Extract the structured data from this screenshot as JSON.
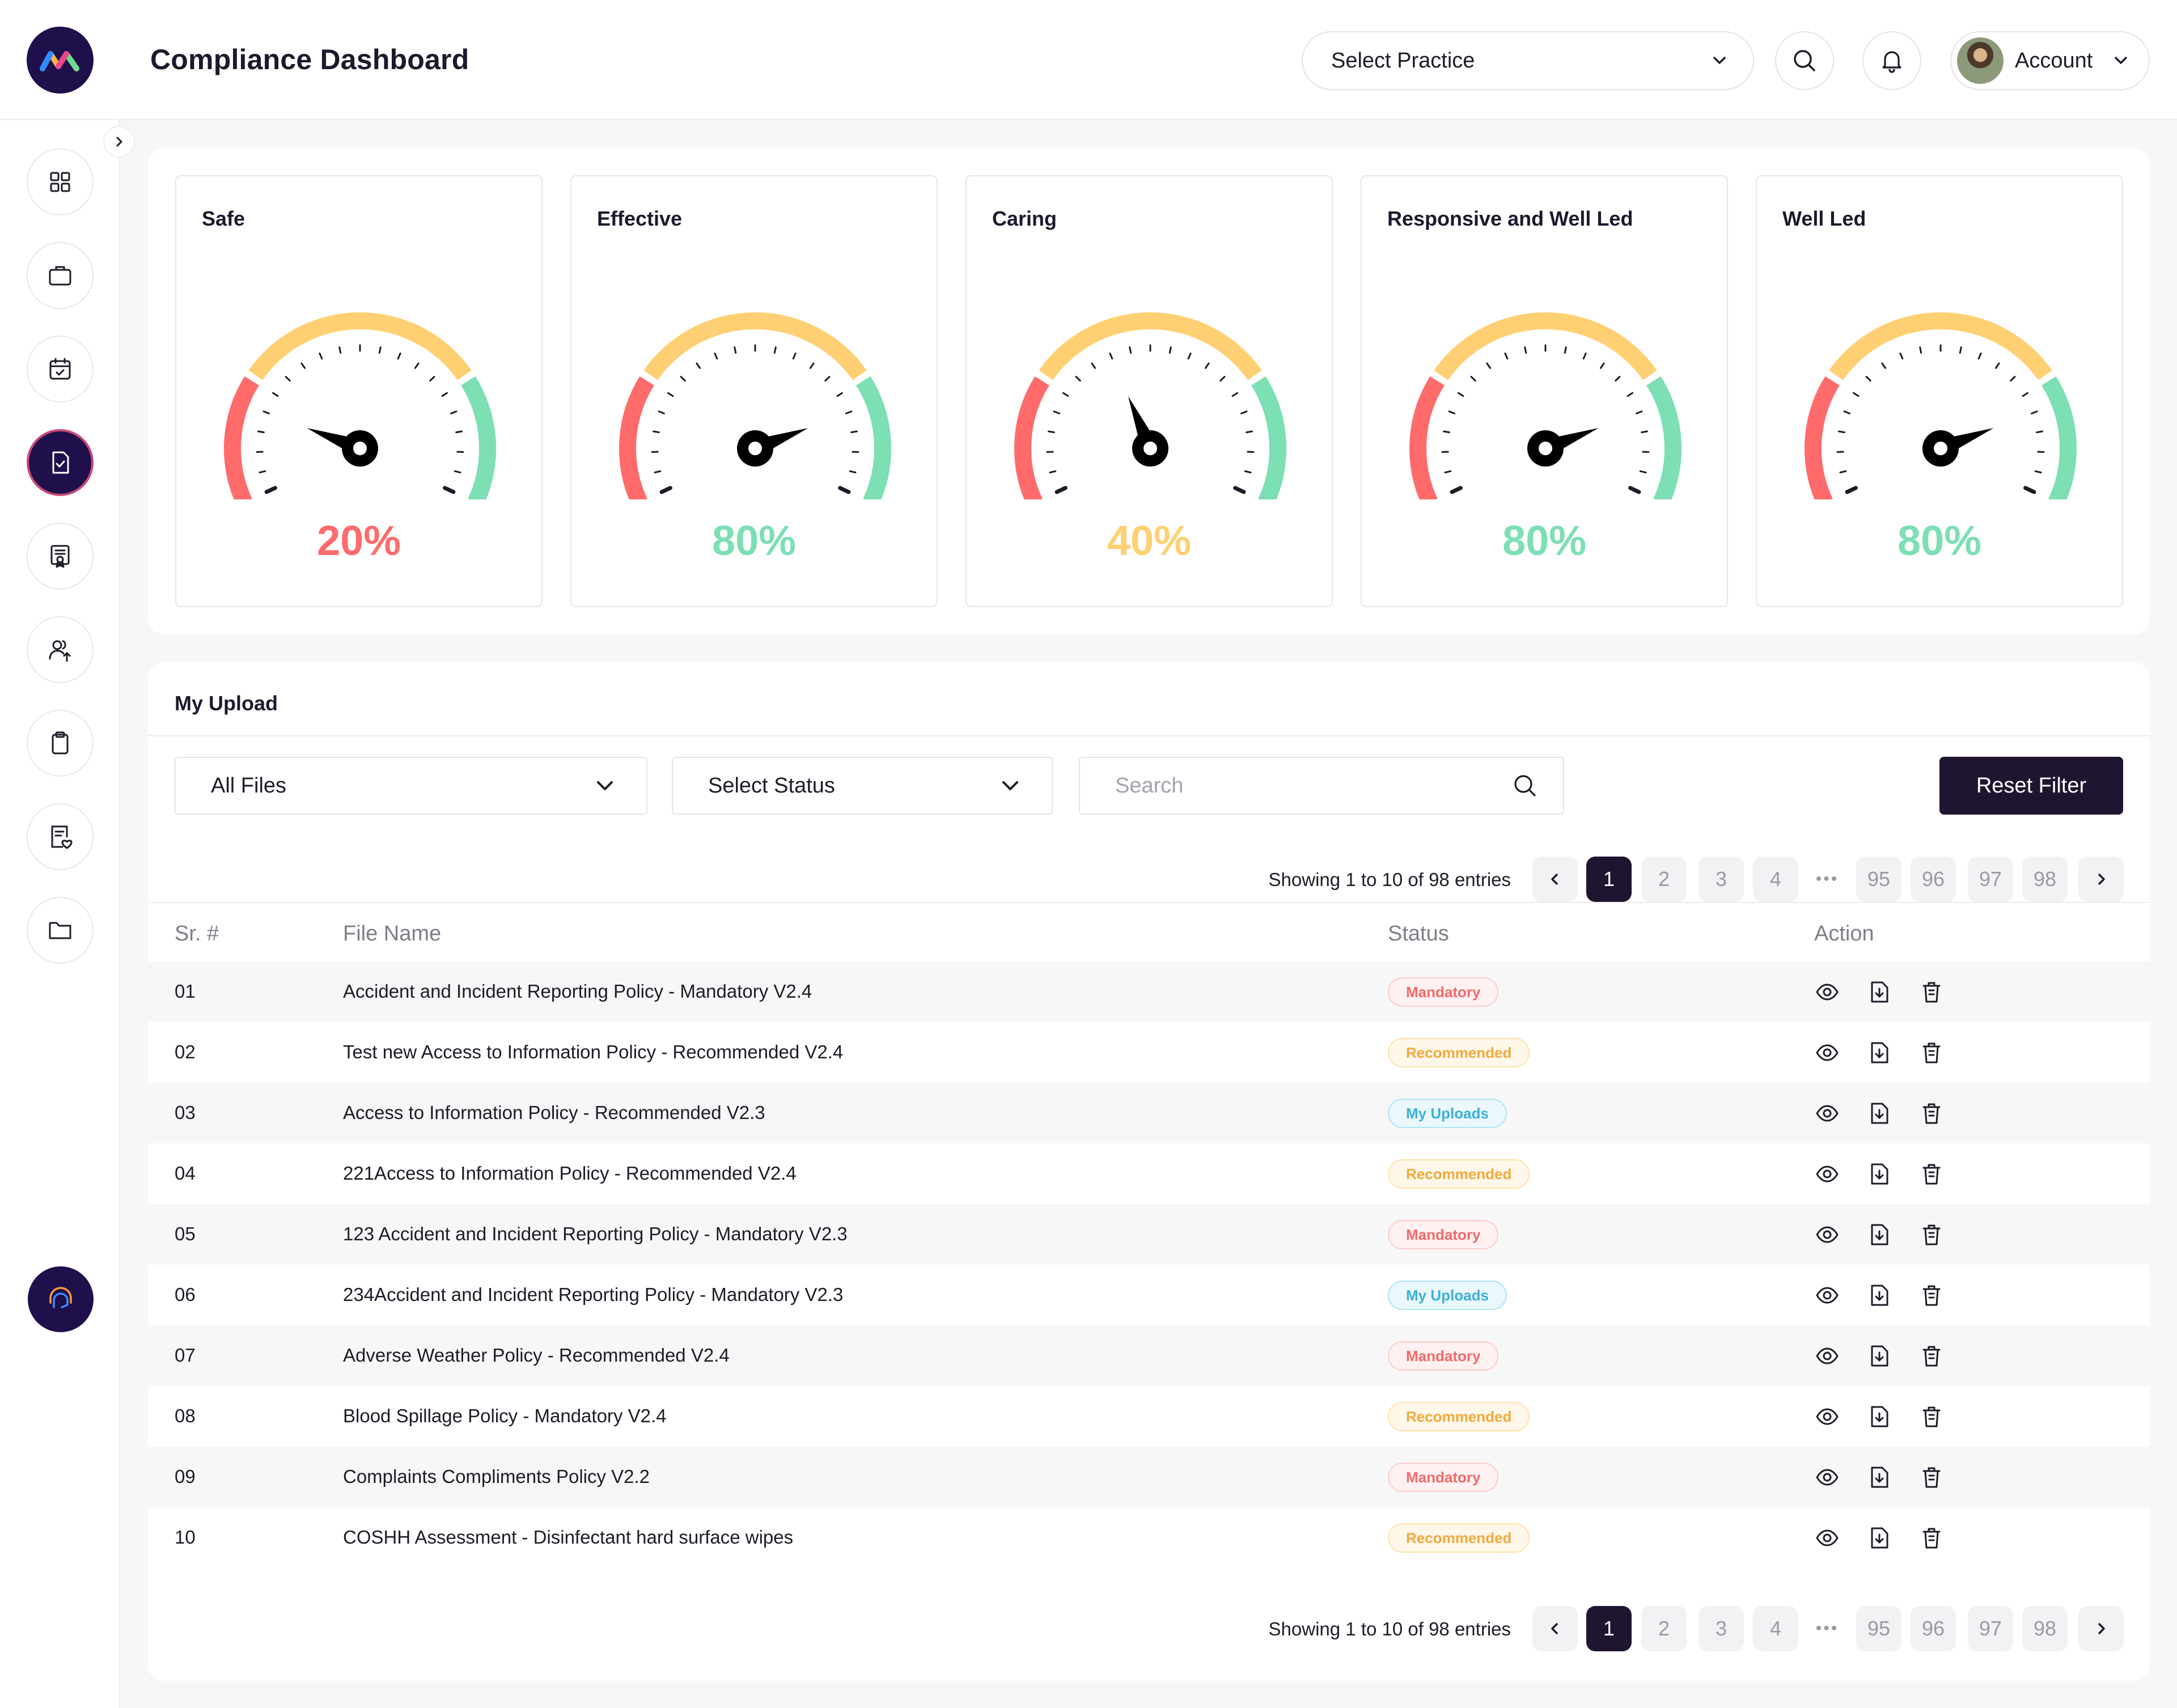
{
  "header": {
    "title": "Compliance Dashboard",
    "practice_select": "Select Practice",
    "account_label": "Account"
  },
  "icons": {
    "logo": "brand-m-logo",
    "search": "search-icon",
    "bell": "bell-icon",
    "chevron": "chevron-down-icon"
  },
  "sidebar": {
    "items": [
      {
        "name": "dashboard",
        "icon": "grid-icon"
      },
      {
        "name": "practice",
        "icon": "briefcase-icon"
      },
      {
        "name": "calendar",
        "icon": "calendar-check-icon"
      },
      {
        "name": "compliance",
        "icon": "document-check-icon",
        "active": true
      },
      {
        "name": "certificate",
        "icon": "certificate-icon"
      },
      {
        "name": "users",
        "icon": "users-icon"
      },
      {
        "name": "clipboard",
        "icon": "clipboard-icon"
      },
      {
        "name": "policies",
        "icon": "document-heart-icon"
      },
      {
        "name": "folders",
        "icon": "folder-icon"
      }
    ],
    "support_icon": "support-chat-icon"
  },
  "gauges": [
    {
      "label": "Safe",
      "value": "20%",
      "percent": 20,
      "color": "#ff6b6b"
    },
    {
      "label": "Effective",
      "value": "80%",
      "percent": 80,
      "color": "#7ddfb4"
    },
    {
      "label": "Caring",
      "value": "40%",
      "percent": 40,
      "color": "#ffd073"
    },
    {
      "label": "Responsive and Well Led",
      "value": "80%",
      "percent": 80,
      "color": "#7ddfb4"
    },
    {
      "label": "Well Led",
      "value": "80%",
      "percent": 80,
      "color": "#7ddfb4"
    }
  ],
  "gauge_colors": {
    "red": "#ff6b6b",
    "yellow": "#ffd073",
    "green": "#7ddfb4"
  },
  "uploads": {
    "title": "My Upload",
    "filters": {
      "files": "All Files",
      "status": "Select Status",
      "search_placeholder": "Search",
      "reset": "Reset Filter"
    },
    "showing": "Showing 1 to 10 of 98 entries",
    "pages": [
      "1",
      "2",
      "3",
      "4",
      "•••",
      "95",
      "96",
      "97",
      "98"
    ],
    "current_page": "1",
    "columns": [
      "Sr. #",
      "File Name",
      "Status",
      "Action"
    ],
    "rows": [
      {
        "sr": "01",
        "name": "Accident and Incident Reporting Policy - Mandatory V2.4",
        "status": "Mandatory"
      },
      {
        "sr": "02",
        "name": "Test new Access to Information Policy - Recommended V2.4",
        "status": "Recommended"
      },
      {
        "sr": "03",
        "name": "Access to Information Policy - Recommended V2.3",
        "status": "My Uploads"
      },
      {
        "sr": "04",
        "name": "221Access to Information Policy - Recommended V2.4",
        "status": "Recommended"
      },
      {
        "sr": "05",
        "name": "123 Accident and Incident Reporting Policy - Mandatory V2.3",
        "status": "Mandatory"
      },
      {
        "sr": "06",
        "name": "234Accident and Incident Reporting Policy - Mandatory V2.3",
        "status": "My Uploads"
      },
      {
        "sr": "07",
        "name": "Adverse Weather Policy - Recommended V2.4",
        "status": "Mandatory"
      },
      {
        "sr": "08",
        "name": "Blood Spillage Policy - Mandatory V2.4",
        "status": "Recommended"
      },
      {
        "sr": "09",
        "name": "Complaints Compliments Policy V2.2",
        "status": "Mandatory"
      },
      {
        "sr": "10",
        "name": "COSHH Assessment - Disinfectant hard surface wipes",
        "status": "Recommended"
      }
    ],
    "status_styles": {
      "Mandatory": {
        "fg": "#f26a6a",
        "bg": "#fff1f1",
        "border": "#ffc9c9"
      },
      "Recommended": {
        "fg": "#f2a93b",
        "bg": "#fff8ea",
        "border": "#ffe1a8"
      },
      "My Uploads": {
        "fg": "#3ab0d9",
        "bg": "#eaf8fd",
        "border": "#aee3f4"
      }
    },
    "action_icons": [
      "eye-icon",
      "download-icon",
      "trash-icon"
    ]
  }
}
